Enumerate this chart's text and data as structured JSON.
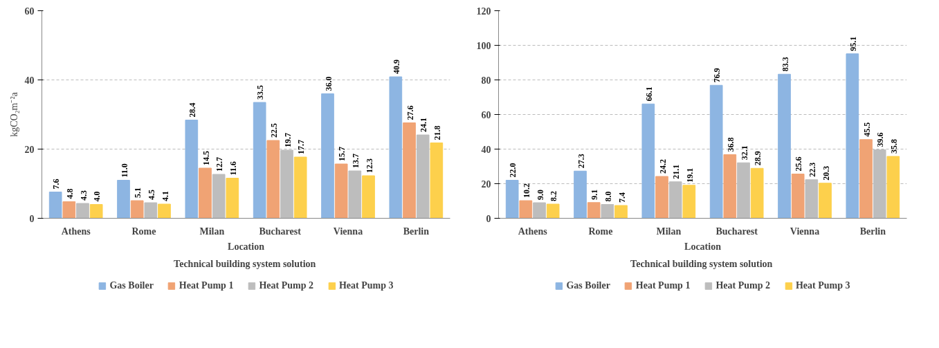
{
  "chart_data": [
    {
      "type": "bar",
      "categories": [
        "Athens",
        "Rome",
        "Milan",
        "Bucharest",
        "Vienna",
        "Berlin"
      ],
      "xlabel": "Location",
      "ylabel": "kgCO₂m⁻²a",
      "annotations": [
        "Technical  building system solution"
      ],
      "series": [
        {
          "name": "Gas Boiler",
          "color": "#8db5e2",
          "values": [
            7.6,
            11.0,
            28.4,
            33.5,
            36.0,
            40.9
          ],
          "value_labels": [
            "7.6",
            "11.0",
            "28.4",
            "33.5",
            "36.0",
            "40.9"
          ]
        },
        {
          "name": "Heat Pump 1",
          "color": "#f0a374",
          "values": [
            4.8,
            5.1,
            14.5,
            22.5,
            15.7,
            27.6
          ],
          "value_labels": [
            "4.8",
            "5.1",
            "14.5",
            "22.5",
            "15.7",
            "27.6"
          ]
        },
        {
          "name": "Heat Pump 2",
          "color": "#bdbdbd",
          "values": [
            4.3,
            4.5,
            12.7,
            19.7,
            13.7,
            24.1
          ],
          "value_labels": [
            "4.3",
            "4.5",
            "12.7",
            "19.7",
            "13.7",
            "24.1"
          ]
        },
        {
          "name": "Heat Pump 3",
          "color": "#fdd04c",
          "values": [
            4.0,
            4.1,
            11.6,
            17.7,
            12.3,
            21.8
          ],
          "value_labels": [
            "4.0",
            "4.1",
            "11.6",
            "17.7",
            "12.3",
            "21.8"
          ]
        }
      ],
      "ylim": [
        0,
        60
      ],
      "yticks": [
        0,
        20,
        40,
        60
      ],
      "grid": "y",
      "legend": "bottom"
    },
    {
      "type": "bar",
      "categories": [
        "Athens",
        "Rome",
        "Milan",
        "Bucharest",
        "Vienna",
        "Berlin"
      ],
      "xlabel": "Location",
      "annotations": [
        "Technical  building system solution"
      ],
      "series": [
        {
          "name": "Gas Boiler",
          "color": "#8db5e2",
          "values": [
            22.0,
            27.3,
            66.1,
            76.9,
            83.3,
            95.1
          ],
          "value_labels": [
            "22.0",
            "27.3",
            "66.1",
            "76.9",
            "83.3",
            "95.1"
          ]
        },
        {
          "name": "Heat Pump 1",
          "color": "#f0a374",
          "values": [
            10.2,
            9.1,
            24.2,
            36.8,
            25.6,
            45.5
          ],
          "value_labels": [
            "10.2",
            "9.1",
            "24.2",
            "36.8",
            "25.6",
            "45.5"
          ]
        },
        {
          "name": "Heat Pump 2",
          "color": "#bdbdbd",
          "values": [
            9.0,
            8.0,
            21.1,
            32.1,
            22.3,
            39.6
          ],
          "value_labels": [
            "9.0",
            "8.0",
            "21.1",
            "32.1",
            "22.3",
            "39.6"
          ]
        },
        {
          "name": "Heat Pump 3",
          "color": "#fdd04c",
          "values": [
            8.2,
            7.4,
            19.1,
            28.9,
            20.3,
            35.8
          ],
          "value_labels": [
            "8.2",
            "7.4",
            "19.1",
            "28.9",
            "20.3",
            "35.8"
          ]
        }
      ],
      "ylim": [
        0,
        120
      ],
      "yticks": [
        0,
        20,
        40,
        60,
        80,
        100,
        120
      ],
      "grid": "y",
      "legend": "bottom"
    }
  ]
}
